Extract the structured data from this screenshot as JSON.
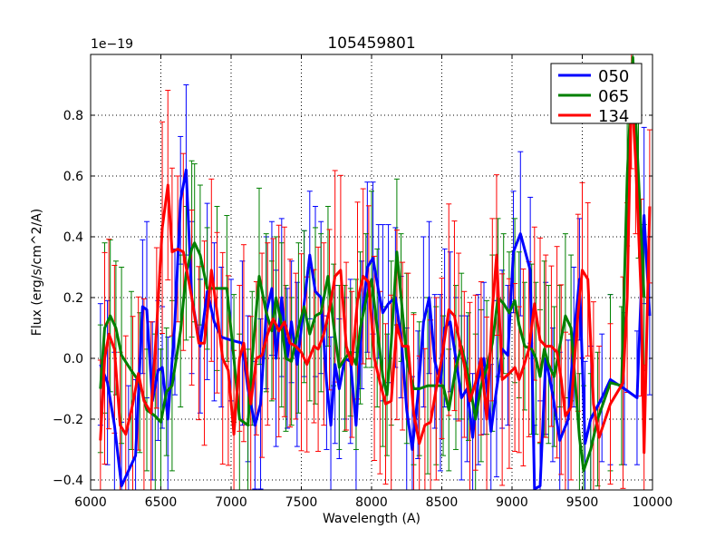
{
  "chart_data": {
    "type": "line",
    "title": "105459801",
    "xlabel": "Wavelength (A)",
    "ylabel": "Flux (erg/s/cm^2/A)",
    "y_offset_text": "1e−19",
    "xlim": [
      6000,
      10000
    ],
    "ylim": [
      -0.433,
      1.0
    ],
    "grid": true,
    "legend_placement": "top-right",
    "xticks": [
      "6000",
      "6500",
      "7000",
      "7500",
      "8000",
      "8500",
      "9000",
      "9500",
      "10000"
    ],
    "xtick_values": [
      6000,
      6500,
      7000,
      7500,
      8000,
      8500,
      9000,
      9500,
      10000
    ],
    "yticks": [
      "−0.4",
      "−0.2",
      "0.0",
      "0.2",
      "0.4",
      "0.6",
      "0.8"
    ],
    "ytick_values": [
      -0.4,
      -0.2,
      0.0,
      0.2,
      0.4,
      0.6,
      0.8
    ],
    "series": [
      {
        "name": "050",
        "color": "#0000ff",
        "yerr": 0.25,
        "points": [
          [
            6070,
            -0.02
          ],
          [
            6120,
            -0.08
          ],
          [
            6170,
            -0.22
          ],
          [
            6220,
            -0.42
          ],
          [
            6270,
            -0.37
          ],
          [
            6320,
            -0.32
          ],
          [
            6370,
            0.17
          ],
          [
            6400,
            0.16
          ],
          [
            6440,
            -0.14
          ],
          [
            6480,
            -0.04
          ],
          [
            6510,
            -0.03
          ],
          [
            6550,
            -0.2
          ],
          [
            6600,
            0.12
          ],
          [
            6640,
            0.52
          ],
          [
            6680,
            0.62
          ],
          [
            6720,
            0.2
          ],
          [
            6780,
            0.04
          ],
          [
            6830,
            0.22
          ],
          [
            6880,
            0.12
          ],
          [
            6930,
            0.07
          ],
          [
            7000,
            0.06
          ],
          [
            7080,
            0.05
          ],
          [
            7120,
            -0.1
          ],
          [
            7170,
            -0.22
          ],
          [
            7210,
            -0.15
          ],
          [
            7250,
            0.15
          ],
          [
            7290,
            0.23
          ],
          [
            7320,
            0.0
          ],
          [
            7360,
            0.2
          ],
          [
            7400,
            0.0
          ],
          [
            7430,
            0.12
          ],
          [
            7470,
            -0.02
          ],
          [
            7520,
            0.18
          ],
          [
            7560,
            0.34
          ],
          [
            7600,
            0.22
          ],
          [
            7640,
            0.2
          ],
          [
            7680,
            -0.08
          ],
          [
            7710,
            -0.22
          ],
          [
            7740,
            -0.02
          ],
          [
            7770,
            -0.1
          ],
          [
            7810,
            0.0
          ],
          [
            7850,
            -0.01
          ],
          [
            7890,
            -0.22
          ],
          [
            7930,
            0.11
          ],
          [
            7970,
            0.3
          ],
          [
            8010,
            0.33
          ],
          [
            8050,
            0.22
          ],
          [
            8080,
            0.15
          ],
          [
            8120,
            0.18
          ],
          [
            8170,
            0.2
          ],
          [
            8210,
            0.07
          ],
          [
            8250,
            -0.17
          ],
          [
            8290,
            -0.3
          ],
          [
            8330,
            -0.12
          ],
          [
            8370,
            0.12
          ],
          [
            8410,
            0.2
          ],
          [
            8450,
            -0.01
          ],
          [
            8490,
            -0.08
          ],
          [
            8520,
            0.1
          ],
          [
            8560,
            0.12
          ],
          [
            8600,
            0.0
          ],
          [
            8640,
            -0.13
          ],
          [
            8680,
            -0.1
          ],
          [
            8720,
            -0.26
          ],
          [
            8760,
            -0.07
          ],
          [
            8800,
            0.0
          ],
          [
            8850,
            -0.24
          ],
          [
            8890,
            -0.1
          ],
          [
            8930,
            0.03
          ],
          [
            8970,
            0.01
          ],
          [
            9010,
            0.35
          ],
          [
            9060,
            0.41
          ],
          [
            9130,
            0.29
          ],
          [
            9160,
            -0.43
          ],
          [
            9200,
            -0.42
          ],
          [
            9240,
            0.0
          ],
          [
            9290,
            -0.12
          ],
          [
            9340,
            -0.27
          ],
          [
            9400,
            -0.2
          ],
          [
            9440,
            0.07
          ],
          [
            9480,
            0.26
          ],
          [
            9520,
            -0.28
          ],
          [
            9560,
            -0.2
          ],
          [
            9640,
            -0.13
          ],
          [
            9700,
            -0.07
          ],
          [
            9800,
            -0.1
          ],
          [
            9890,
            -0.13
          ],
          [
            9940,
            0.47
          ],
          [
            9980,
            0.14
          ]
        ]
      },
      {
        "name": "065",
        "color": "#008000",
        "yerr": 0.25,
        "points": [
          [
            6070,
            -0.1
          ],
          [
            6100,
            0.1
          ],
          [
            6140,
            0.14
          ],
          [
            6180,
            0.1
          ],
          [
            6220,
            0.01
          ],
          [
            6290,
            -0.04
          ],
          [
            6350,
            -0.08
          ],
          [
            6400,
            -0.17
          ],
          [
            6460,
            -0.19
          ],
          [
            6500,
            -0.21
          ],
          [
            6540,
            -0.11
          ],
          [
            6580,
            -0.09
          ],
          [
            6640,
            0.09
          ],
          [
            6680,
            0.28
          ],
          [
            6720,
            0.36
          ],
          [
            6740,
            0.38
          ],
          [
            6780,
            0.34
          ],
          [
            6830,
            0.23
          ],
          [
            6900,
            0.23
          ],
          [
            6970,
            0.23
          ],
          [
            7020,
            0.0
          ],
          [
            7060,
            -0.2
          ],
          [
            7120,
            -0.22
          ],
          [
            7150,
            0.0
          ],
          [
            7200,
            0.27
          ],
          [
            7250,
            0.15
          ],
          [
            7290,
            0.09
          ],
          [
            7320,
            0.2
          ],
          [
            7360,
            0.11
          ],
          [
            7390,
            0.0
          ],
          [
            7430,
            -0.01
          ],
          [
            7480,
            0.1
          ],
          [
            7520,
            0.17
          ],
          [
            7560,
            0.08
          ],
          [
            7600,
            0.14
          ],
          [
            7640,
            0.15
          ],
          [
            7690,
            0.27
          ],
          [
            7730,
            0.11
          ],
          [
            7770,
            -0.03
          ],
          [
            7810,
            0.0
          ],
          [
            7850,
            0.02
          ],
          [
            7890,
            -0.02
          ],
          [
            7920,
            0.1
          ],
          [
            7960,
            0.19
          ],
          [
            8000,
            0.26
          ],
          [
            8040,
            0.1
          ],
          [
            8080,
            -0.06
          ],
          [
            8110,
            -0.12
          ],
          [
            8140,
            0.05
          ],
          [
            8180,
            0.35
          ],
          [
            8210,
            0.2
          ],
          [
            8250,
            0.0
          ],
          [
            8300,
            -0.1
          ],
          [
            8340,
            -0.1
          ],
          [
            8400,
            -0.09
          ],
          [
            8460,
            -0.09
          ],
          [
            8510,
            -0.09
          ],
          [
            8550,
            -0.17
          ],
          [
            8600,
            -0.03
          ],
          [
            8640,
            0.04
          ],
          [
            8690,
            -0.06
          ],
          [
            8740,
            -0.2
          ],
          [
            8780,
            -0.09
          ],
          [
            8820,
            -0.03
          ],
          [
            8860,
            0.05
          ],
          [
            8900,
            0.2
          ],
          [
            8940,
            0.18
          ],
          [
            8980,
            0.15
          ],
          [
            9020,
            0.19
          ],
          [
            9050,
            0.11
          ],
          [
            9090,
            0.04
          ],
          [
            9140,
            0.03
          ],
          [
            9170,
            0.0
          ],
          [
            9200,
            -0.06
          ],
          [
            9230,
            0.03
          ],
          [
            9260,
            -0.02
          ],
          [
            9300,
            -0.06
          ],
          [
            9340,
            0.04
          ],
          [
            9380,
            0.14
          ],
          [
            9420,
            0.1
          ],
          [
            9480,
            -0.26
          ],
          [
            9510,
            -0.37
          ],
          [
            9560,
            -0.3
          ],
          [
            9610,
            -0.2
          ],
          [
            9700,
            -0.08
          ],
          [
            9780,
            -0.09
          ],
          [
            9820,
            0.6
          ],
          [
            9860,
            0.99
          ],
          [
            9900,
            0.6
          ],
          [
            9940,
            0.2
          ]
        ]
      },
      {
        "name": "134",
        "color": "#ff0000",
        "yerr": 0.3,
        "points": [
          [
            6070,
            -0.27
          ],
          [
            6100,
            0.0
          ],
          [
            6130,
            0.08
          ],
          [
            6170,
            0.03
          ],
          [
            6210,
            -0.22
          ],
          [
            6250,
            -0.25
          ],
          [
            6300,
            -0.15
          ],
          [
            6340,
            -0.05
          ],
          [
            6380,
            -0.14
          ],
          [
            6430,
            -0.18
          ],
          [
            6470,
            0.1
          ],
          [
            6510,
            0.43
          ],
          [
            6550,
            0.57
          ],
          [
            6580,
            0.35
          ],
          [
            6620,
            0.36
          ],
          [
            6660,
            0.35
          ],
          [
            6720,
            0.2
          ],
          [
            6770,
            0.05
          ],
          [
            6810,
            0.05
          ],
          [
            6860,
            0.29
          ],
          [
            6900,
            0.15
          ],
          [
            6940,
            0.0
          ],
          [
            6980,
            -0.04
          ],
          [
            7020,
            -0.25
          ],
          [
            7060,
            0.0
          ],
          [
            7090,
            0.05
          ],
          [
            7140,
            -0.15
          ],
          [
            7180,
            0.0
          ],
          [
            7220,
            0.01
          ],
          [
            7260,
            0.08
          ],
          [
            7300,
            0.13
          ],
          [
            7340,
            0.09
          ],
          [
            7380,
            0.12
          ],
          [
            7420,
            0.05
          ],
          [
            7460,
            0.04
          ],
          [
            7500,
            0.02
          ],
          [
            7540,
            -0.02
          ],
          [
            7590,
            0.04
          ],
          [
            7620,
            0.03
          ],
          [
            7660,
            0.08
          ],
          [
            7700,
            0.16
          ],
          [
            7740,
            0.27
          ],
          [
            7780,
            0.29
          ],
          [
            7820,
            0.04
          ],
          [
            7860,
            -0.02
          ],
          [
            7900,
            0.19
          ],
          [
            7940,
            0.27
          ],
          [
            7980,
            0.25
          ],
          [
            8020,
            0.0
          ],
          [
            8060,
            -0.08
          ],
          [
            8100,
            -0.15
          ],
          [
            8140,
            -0.14
          ],
          [
            8180,
            0.11
          ],
          [
            8220,
            0.04
          ],
          [
            8260,
            0.04
          ],
          [
            8300,
            -0.18
          ],
          [
            8340,
            -0.28
          ],
          [
            8380,
            -0.22
          ],
          [
            8420,
            -0.21
          ],
          [
            8460,
            -0.1
          ],
          [
            8500,
            0.0
          ],
          [
            8550,
            0.16
          ],
          [
            8590,
            0.14
          ],
          [
            8620,
            0.07
          ],
          [
            8660,
            -0.02
          ],
          [
            8700,
            -0.14
          ],
          [
            8740,
            -0.08
          ],
          [
            8780,
            0.0
          ],
          [
            8820,
            -0.2
          ],
          [
            8860,
            0.16
          ],
          [
            8890,
            0.34
          ],
          [
            8930,
            -0.07
          ],
          [
            8980,
            -0.05
          ],
          [
            9020,
            -0.03
          ],
          [
            9050,
            -0.07
          ],
          [
            9080,
            -0.03
          ],
          [
            9120,
            0.03
          ],
          [
            9160,
            0.18
          ],
          [
            9200,
            0.06
          ],
          [
            9240,
            0.04
          ],
          [
            9280,
            0.04
          ],
          [
            9320,
            0.02
          ],
          [
            9350,
            -0.07
          ],
          [
            9380,
            -0.19
          ],
          [
            9420,
            -0.16
          ],
          [
            9470,
            0.15
          ],
          [
            9500,
            0.29
          ],
          [
            9540,
            0.26
          ],
          [
            9580,
            -0.15
          ],
          [
            9620,
            -0.26
          ],
          [
            9700,
            -0.15
          ],
          [
            9790,
            -0.08
          ],
          [
            9820,
            0.2
          ],
          [
            9850,
            0.9
          ],
          [
            9880,
            0.65
          ],
          [
            9920,
            0.2
          ],
          [
            9940,
            -0.31
          ],
          [
            9980,
            0.5
          ]
        ]
      }
    ]
  }
}
